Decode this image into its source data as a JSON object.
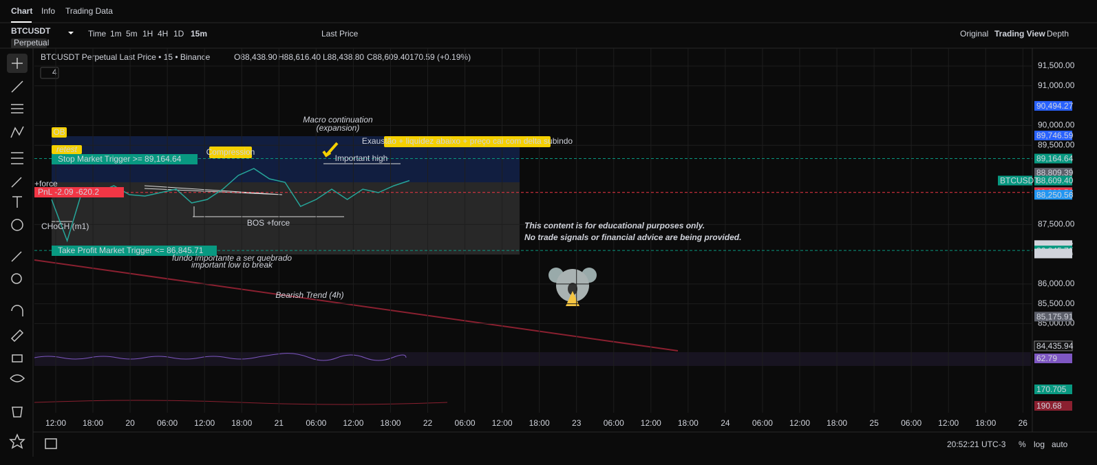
{
  "tabs": [
    "Chart",
    "Info",
    "Trading Data"
  ],
  "symbol": "BTCUSDT",
  "contract": "Perpetual",
  "intervals": [
    "Time",
    "1m",
    "5m",
    "1H",
    "4H",
    "1D",
    "15m"
  ],
  "price_source": "Last Price",
  "views": [
    "Original",
    "Trading View",
    "Depth"
  ],
  "legend": {
    "title": "BTCUSDT Perpetual Last Price • 15 • Binance",
    "open": "O88,438.90",
    "high": "H88,616.40",
    "low": "L88,438.80",
    "close": "C88,609.40",
    "change": "170.59 (+0.19%)"
  },
  "indicator_count": "4",
  "chart_data": {
    "type": "line",
    "color": "#26a69a",
    "values": [
      88132,
      87090,
      88392,
      88305,
      88479,
      88253,
      88219,
      88305,
      88392,
      88045,
      88132,
      88392,
      88739,
      88913,
      88653,
      88566,
      87958,
      88132,
      88392,
      88132,
      88392,
      88305,
      88479,
      88609
    ],
    "ylim": [
      84313,
      91951
    ],
    "yticks": [
      {
        "value": 91500,
        "label": "91,500.00"
      },
      {
        "value": 91000,
        "label": "91,000.00"
      },
      {
        "value": 90000,
        "label": "90,000.00"
      },
      {
        "value": 89500,
        "label": "89,500.00"
      },
      {
        "value": 87500,
        "label": "87,500.00"
      },
      {
        "value": 86000,
        "label": "86,000.00"
      },
      {
        "value": 85500,
        "label": "85,500.00"
      },
      {
        "value": 85000,
        "label": "85,000.00"
      }
    ],
    "grid": true,
    "x_labels": [
      "12:00",
      "18:00",
      "20",
      "06:00",
      "12:00",
      "18:00",
      "21",
      "06:00",
      "12:00",
      "18:00",
      "22",
      "06:00",
      "12:00",
      "18:00",
      "23",
      "06:00",
      "12:00",
      "18:00",
      "24",
      "06:00",
      "12:00",
      "18:00",
      "25",
      "06:00",
      "12:00",
      "18:00",
      "26"
    ],
    "price_tags": [
      {
        "value": 90494.27,
        "label": "90,494.27",
        "color": "#2962ff"
      },
      {
        "value": 89746.59,
        "label": "89,746.59",
        "color": "#2962ff"
      },
      {
        "value": 89164.64,
        "label": "89,164.64",
        "color": "#089981"
      },
      {
        "value": 88809.39,
        "label": "88,809.39",
        "color": "#5d606b"
      },
      {
        "value": 88609.4,
        "label": "88,609.40",
        "color": "#089981"
      },
      {
        "value": 88320.83,
        "label": "88,320.83",
        "color": "#5d606b"
      },
      {
        "value": 88309.51,
        "label": "88,309.51",
        "color": "#f23645"
      },
      {
        "value": 88250.56,
        "label": "88,250.56",
        "color": "#2196f3"
      },
      {
        "value": 86980.22,
        "label": "86,980.22",
        "color": "#d1d4dc"
      },
      {
        "value": 86845.71,
        "label": "86,845.71",
        "color": "#089981"
      },
      {
        "value": 86769.64,
        "label": "86,769.64",
        "color": "#d1d4dc"
      },
      {
        "value": 85175.91,
        "label": "85,175.91",
        "color": "#5d606b"
      },
      {
        "value": 84435.94,
        "label": "84,435.94",
        "color": "#131313"
      }
    ],
    "symbol_tag": "BTCUSDT",
    "lines": [
      {
        "value": 89164.64,
        "color": "#089981"
      },
      {
        "value": 88309.51,
        "color": "#f23645"
      },
      {
        "value": 86845.71,
        "color": "#089981"
      }
    ]
  },
  "orders": {
    "stop": "Stop Market Trigger >= 89,164.64",
    "take_profit": "Take Profit Market Trigger <= 86,845.71",
    "pnl": "PnL -2.09",
    "qty": "-620.2"
  },
  "annotations": {
    "ob": "OB",
    "retest": "retest",
    "compression": "Compression",
    "macro": "Macro continuation",
    "expansion": "(expansion)",
    "exhaustion": "Exaustão + liquidez abaixo + preço cai com delta subindo",
    "important_high": "Important high",
    "bos": "BOS +force",
    "choch": "CHoCH (m1)",
    "force": "+force",
    "low_pt": "fundo importante a ser quebrado",
    "low_en": "important low to break",
    "bearish": "Bearish Trend (4h)",
    "disclaimer1": "This content is for educational purposes only.",
    "disclaimer2": "No trade signals or financial advice are being provided."
  },
  "indicators": {
    "rsi": "62.79",
    "volume": "170.705",
    "volume_ma": "190.68"
  },
  "status": {
    "clock": "20:52:21 UTC-3",
    "percent": "%",
    "log": "log",
    "auto": "auto"
  }
}
